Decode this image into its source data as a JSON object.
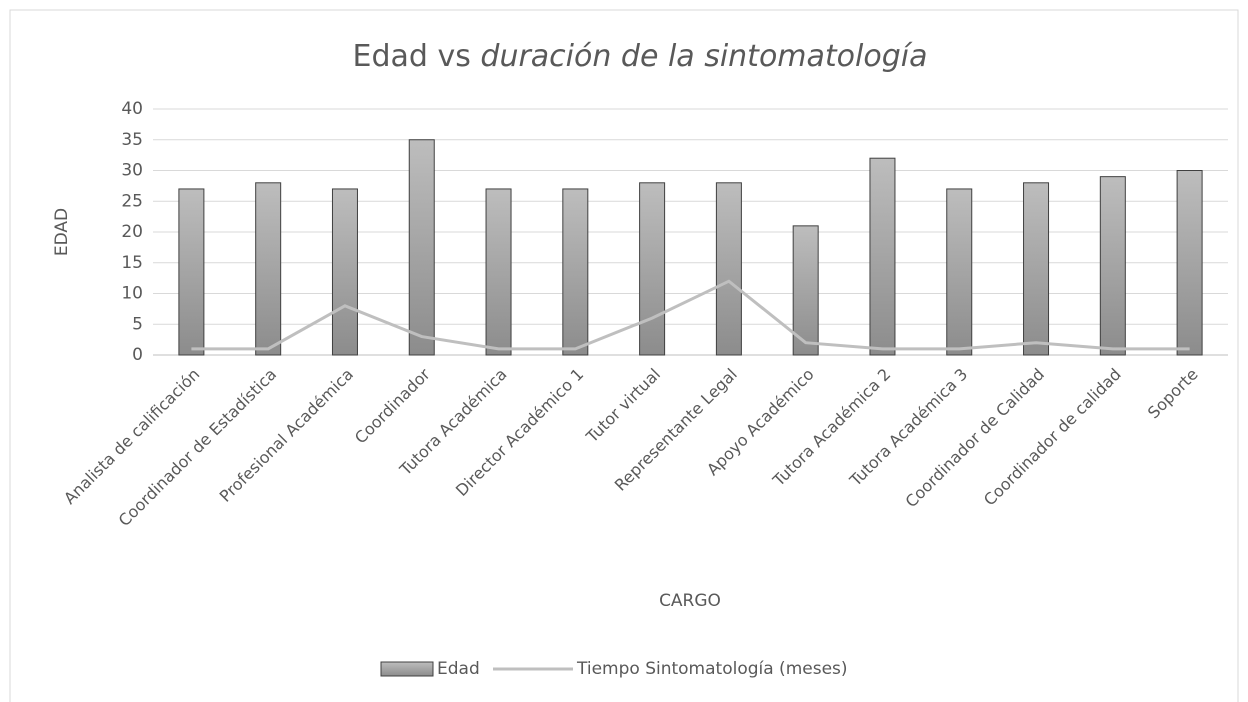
{
  "chart_data": {
    "type": "bar",
    "title": [
      "Edad vs",
      "duración de la sintomatología"
    ],
    "x_label": "CARGO",
    "y_label": "EDAD",
    "categories": [
      "Analista de calificación",
      "Coordinador de Estadística",
      "Profesional Académica",
      "Coordinador",
      "Tutora Académica",
      "Director Académico 1",
      "Tutor virtual",
      "Representante Legal",
      "Apoyo Académico",
      "Tutora Académica 2",
      "Tutora Académica 3",
      "Coordinador de Calidad",
      "Coordinador de calidad",
      "Soporte"
    ],
    "series": [
      {
        "name": "Edad",
        "type": "bar",
        "color": "#a6a6a6",
        "values": [
          27,
          28,
          27,
          35,
          27,
          27,
          28,
          28,
          21,
          32,
          27,
          28,
          29,
          30
        ]
      },
      {
        "name": "Tiempo Sintomatología (meses)",
        "type": "line",
        "color": "#bfbfbf",
        "values": [
          1,
          1,
          8,
          3,
          1,
          1,
          6,
          12,
          2,
          1,
          1,
          2,
          1,
          1
        ]
      }
    ],
    "ylim": [
      0,
      40
    ],
    "yticks": [
      0,
      5,
      10,
      15,
      20,
      25,
      30,
      35,
      40
    ],
    "grid": true,
    "legend": "bottom"
  }
}
